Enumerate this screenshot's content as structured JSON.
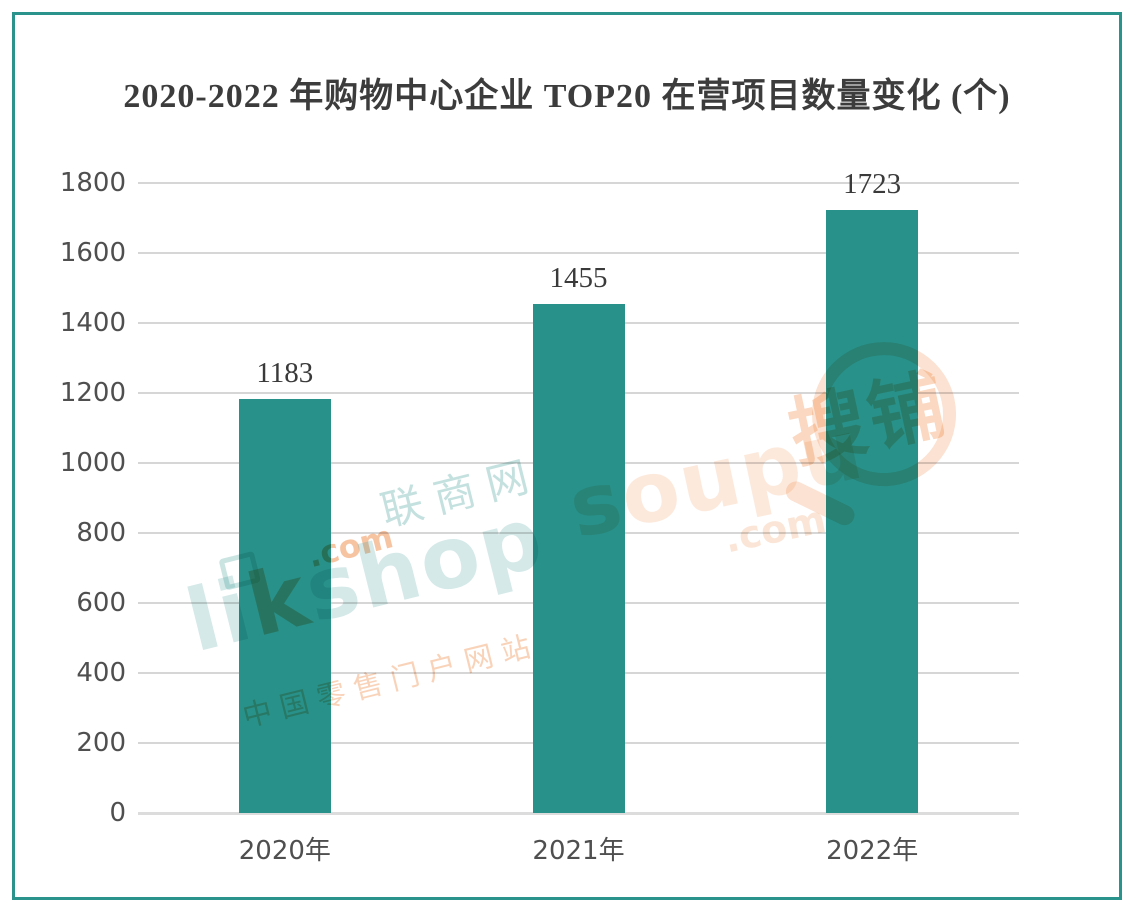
{
  "chart_data": {
    "type": "bar",
    "title": "2020-2022 年购物中心企业 TOP20 在营项目数量变化 (个)",
    "categories": [
      "2020年",
      "2021年",
      "2022年"
    ],
    "values": [
      1183,
      1455,
      1723
    ],
    "value_labels": [
      "1183",
      "1455",
      "1723"
    ],
    "xlabel": "",
    "ylabel": "",
    "ylim": [
      0,
      1800
    ],
    "ytick_step": 200,
    "ytick_labels": [
      "0",
      "200",
      "400",
      "600",
      "800",
      "1000",
      "1200",
      "1400",
      "1600",
      "1800"
    ],
    "grid": "horizontal",
    "legend": "none"
  },
  "colors": {
    "bar": "#28918a",
    "frame": "#2a938b",
    "gridline": "#d6d6d6",
    "baseline": "#dcdcdc",
    "title_text": "#3c3c3c",
    "value_text": "#3a3a3a",
    "axis_text": "#4f4f4f",
    "wm_teal": "#2a938c",
    "wm_orange": "#ed7d31"
  },
  "watermarks": {
    "linkshop": {
      "brand_prefix": "li",
      "brand_k": "k",
      "brand_suffix": "shop",
      "domain": ".com",
      "site_name": "联商网",
      "slogan": "中国零售门户网站"
    },
    "soupu": {
      "brand": "soupu",
      "domain": ".com",
      "site_name": "搜铺"
    }
  }
}
